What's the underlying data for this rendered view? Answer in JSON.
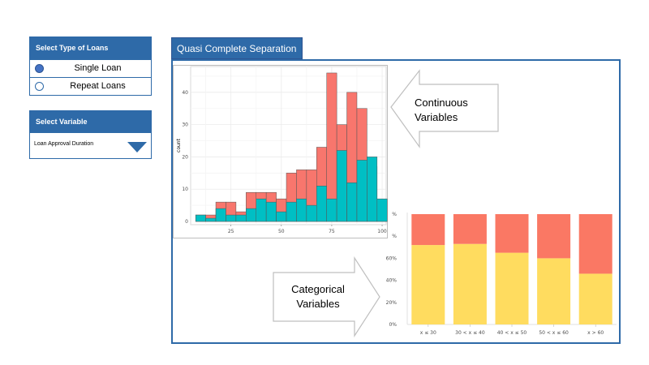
{
  "loan_type": {
    "title": "Select Type of Loans",
    "options": [
      {
        "label": "Single Loan",
        "selected": true
      },
      {
        "label": "Repeat Loans",
        "selected": false
      }
    ]
  },
  "variable": {
    "title": "Select Variable",
    "value": "Loan Approval Duration"
  },
  "tab_title": "Quasi Complete Separation",
  "callouts": {
    "continuous": [
      "Continuous",
      "Variables"
    ],
    "categorical": [
      "Categorical",
      "Variables"
    ]
  },
  "colors": {
    "accent": "#2e6aa8",
    "salmon": "#f8766d",
    "teal": "#00bfc4",
    "yellow": "#ffdc5f",
    "coral": "#fa7864"
  },
  "chart_data": [
    {
      "type": "bar",
      "subtype": "stacked-histogram",
      "ylabel": "count",
      "xlabel": "",
      "xlim": [
        5,
        102
      ],
      "ylim": [
        -1,
        48
      ],
      "xticks": [
        "25",
        "50",
        "75",
        "100"
      ],
      "yticks": [
        "0",
        "10",
        "20",
        "30",
        "40"
      ],
      "grid": true,
      "bin_width": 5,
      "x": [
        10,
        15,
        20,
        25,
        30,
        35,
        40,
        45,
        50,
        55,
        60,
        65,
        70,
        75,
        80,
        85,
        90,
        95,
        100
      ],
      "series": [
        {
          "values": [
            2,
            1,
            4,
            2,
            2,
            4,
            7,
            6,
            3,
            6,
            7,
            5,
            11,
            7,
            22,
            12,
            19,
            20,
            7
          ]
        },
        {
          "values": [
            2,
            2,
            6,
            6,
            3,
            9,
            9,
            9,
            7,
            15,
            16,
            16,
            23,
            46,
            30,
            40,
            35,
            17,
            2
          ]
        }
      ]
    },
    {
      "type": "bar",
      "subtype": "stacked-percent",
      "categories": [
        "x ≤ 30",
        "30 < x ≤ 40",
        "40 < x ≤ 50",
        "50 < x ≤ 60",
        "x > 60"
      ],
      "yticks": [
        "0%",
        "20%",
        "40%",
        "60%",
        "%",
        "%"
      ],
      "ylim": [
        0,
        100
      ],
      "series": [
        {
          "values": [
            72,
            73,
            65,
            60,
            46
          ]
        },
        {
          "values": [
            28,
            27,
            35,
            40,
            54
          ]
        }
      ]
    }
  ]
}
